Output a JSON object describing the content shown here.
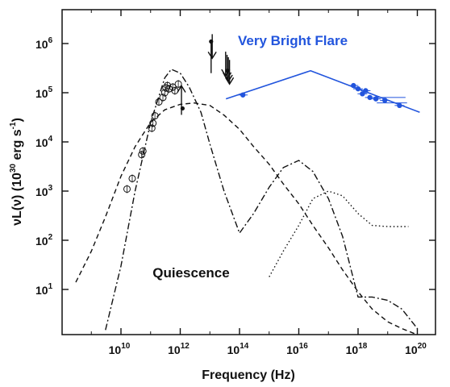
{
  "chart_data": {
    "type": "line",
    "xscale": "log",
    "yscale": "log",
    "xlim": [
      100000000.0,
      1e+20
    ],
    "ylim": [
      1.5,
      10000000.0
    ],
    "grid": false,
    "xlabel": "Frequency (Hz)",
    "ylabel": "νL(ν) (10",
    "ylabel_exp": "30",
    "ylabel_unit": " erg s",
    "ylabel_unit_exp": "-1",
    "ylabel_close": ")",
    "x_ticks": [
      {
        "base": "10",
        "exp": "10",
        "value": 10000000000.0
      },
      {
        "base": "10",
        "exp": "12",
        "value": 1000000000000.0
      },
      {
        "base": "10",
        "exp": "14",
        "value": 100000000000000.0
      },
      {
        "base": "10",
        "exp": "16",
        "value": 1e+16
      },
      {
        "base": "10",
        "exp": "18",
        "value": 1e+18
      },
      {
        "base": "10",
        "exp": "20",
        "value": 1e+20
      }
    ],
    "y_ticks": [
      {
        "base": "10",
        "exp": "1",
        "value": 10
      },
      {
        "base": "10",
        "exp": "2",
        "value": 100
      },
      {
        "base": "10",
        "exp": "3",
        "value": 1000
      },
      {
        "base": "10",
        "exp": "4",
        "value": 10000
      },
      {
        "base": "10",
        "exp": "5",
        "value": 100000
      },
      {
        "base": "10",
        "exp": "6",
        "value": 1000000
      }
    ],
    "annotations": [
      {
        "text": "Very Bright Flare",
        "color": "#2255dd",
        "x": 1e+16,
        "y": 900000.0
      },
      {
        "text": "Quiescence",
        "color": "#111111",
        "x": 50000000000000.0,
        "y": 6
      },
      {
        "text": "Quiescence",
        "color": "#111111",
        "x": 50000000000000.0,
        "y": 6
      }
    ],
    "series": [
      {
        "style": "dashed",
        "color": "#111111",
        "x": [
          300000000.0,
          1000000000.0,
          3000000000.0,
          10000000000.0,
          30000000000.0,
          100000000000.0,
          300000000000.0,
          1000000000000.0,
          3000000000000.0,
          10000000000000.0,
          30000000000000.0,
          100000000000000.0,
          300000000000000.0,
          1000000000000000.0,
          3000000000000000.0,
          1e+16,
          3e+16,
          1e+17,
          3e+17,
          1e+18,
          3e+18,
          1e+19,
          3e+19,
          1e+20
        ],
        "y": [
          14,
          60,
          300,
          2000,
          8000,
          25000,
          45000,
          58000,
          62000,
          55000,
          35000,
          18000,
          8000,
          3500,
          1400,
          550,
          200,
          70,
          25,
          9,
          4,
          2.2,
          1.6,
          1.2
        ]
      },
      {
        "style": "dashdot",
        "color": "#111111",
        "x": [
          3000000000.0,
          10000000000.0,
          30000000000.0,
          100000000000.0,
          300000000000.0,
          500000000000.0,
          1000000000000.0,
          2000000000000.0,
          5000000000000.0,
          10000000000000.0,
          30000000000000.0,
          100000000000000.0,
          300000000000000.0,
          1000000000000000.0,
          3000000000000000.0,
          1e+16,
          3e+16,
          1e+17,
          3e+17,
          1e+18,
          3e+18,
          1e+19,
          3e+19,
          1e+20
        ],
        "y": [
          1.5,
          30,
          1000,
          25000,
          200000,
          300000,
          250000,
          130000,
          40000,
          9000,
          1000,
          140,
          350,
          1200,
          3000,
          4200,
          2500,
          700,
          120,
          7,
          7,
          6,
          4,
          1.6
        ]
      },
      {
        "style": "dotted",
        "color": "#111111",
        "x": [
          1000000000000000.0,
          3000000000000000.0,
          1e+16,
          3e+16,
          1e+17,
          3e+17,
          1e+18,
          3e+18,
          1e+19,
          5e+19
        ],
        "y": [
          18,
          60,
          200,
          700,
          1000,
          800,
          350,
          200,
          190,
          190
        ]
      },
      {
        "style": "solid",
        "color": "#2255dd",
        "name": "",
        "x": [
          35000000000000.0,
          2.5e+16,
          1.2e+20
        ],
        "y": [
          75000,
          280000,
          40000
        ]
      }
    ],
    "points": {
      "open_circles": {
        "x": [
          16000000000.0,
          24000000000.0,
          50000000000.0,
          55000000000.0,
          110000000000.0,
          120000000000.0,
          140000000000.0,
          190000000000.0,
          260000000000.0,
          300000000000.0,
          330000000000.0,
          370000000000.0,
          420000000000.0,
          560000000000.0,
          660000000000.0,
          860000000000.0
        ],
        "y": [
          1100,
          1800,
          5500,
          6500,
          19000,
          24000,
          34000,
          65000,
          80000,
          100000,
          125000,
          140000,
          120000,
          130000,
          110000,
          150000
        ]
      },
      "black_filled": {
        "x": [
          11000000000000.0,
          39000000000000.0,
          1200000000000.0
        ],
        "y": [
          1100000,
          280000,
          48000
        ]
      },
      "blue_filled": {
        "x": [
          130000000000000.0,
          7e+17,
          1e+18,
          1.4e+18,
          1.8e+18,
          2.5e+18,
          4e+18,
          8e+18,
          2.5e+19
        ],
        "y": [
          90000,
          140000,
          120000,
          95000,
          110000,
          80000,
          75000,
          70000,
          55000
        ]
      }
    },
    "upper_limits": {
      "x": [
        12000000000000.0,
        34000000000000.0,
        38000000000000.0,
        42000000000000.0,
        46000000000000.0
      ],
      "y": [
        500000,
        220000,
        190000,
        170000,
        150000
      ]
    },
    "lower_limit": {
      "x": 1100000000000.0,
      "y": 70000
    }
  }
}
